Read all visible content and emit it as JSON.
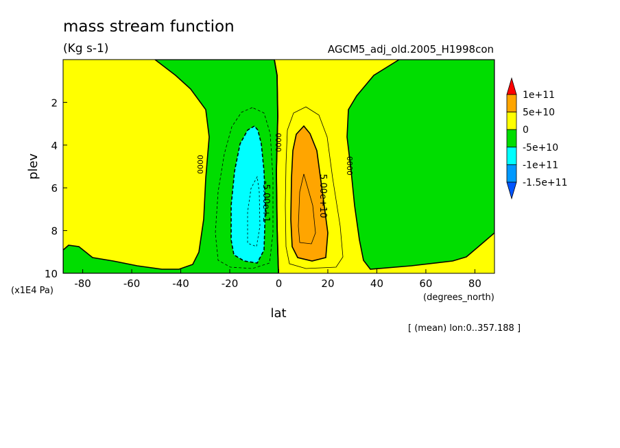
{
  "chart_data": {
    "type": "contour",
    "title": "mass stream function",
    "units": "(Kg s-1)",
    "dataset": "AGCM5_adj_old.2005_H1998con",
    "xlabel": "lat",
    "xunits": "(degrees_north)",
    "ylabel": "plev",
    "yunits": "(x1E4 Pa)",
    "footnote": "[ (mean) lon:0..357.188 ]",
    "xlim": [
      -88,
      88
    ],
    "ylim": [
      10,
      0
    ],
    "x_ticks": [
      -80,
      -60,
      -40,
      -20,
      0,
      20,
      40,
      60,
      80
    ],
    "x_tick_labels": [
      "-80",
      "-60",
      "-40",
      "-20",
      "0",
      "20",
      "40",
      "60",
      "80"
    ],
    "y_ticks": [
      2,
      4,
      6,
      8,
      10
    ],
    "y_tick_labels": [
      "2",
      "4",
      "6",
      "8",
      "10"
    ],
    "colorbar": {
      "labels": [
        "1e+11",
        "5e+10",
        "0",
        "-5e+10",
        "-1e+11",
        "-1.5e+11"
      ],
      "colors": [
        "#ff0000",
        "#ffa500",
        "#ffff00",
        "#00dd00",
        "#00ffff",
        "#0099ff",
        "#0055ff"
      ]
    },
    "contour_labels": [
      {
        "text": "-5.00e+1",
        "lat": -11,
        "plev": 7.0
      },
      {
        "text": "5.00e+10",
        "lat": 20,
        "plev": 7.2
      },
      {
        "text": "0000",
        "lat": -30,
        "plev": 5.1
      },
      {
        "text": "0000",
        "lat": 0,
        "plev": 4.0
      },
      {
        "text": "0000",
        "lat": 30,
        "plev": 5.1
      }
    ],
    "regions": [
      {
        "level": "-5e+10..0",
        "color": "#00dd00",
        "lat_range": [
          -88,
          -3
        ],
        "plev_range": [
          0,
          10
        ]
      },
      {
        "level": "-1e+11..-5e+10",
        "color": "#00ffff",
        "lat_range": [
          -20,
          -4
        ],
        "plev_range": [
          3.2,
          9.5
        ]
      },
      {
        "level": "5e+10..1e+11",
        "color": "#ffa500",
        "lat_range": [
          6,
          20
        ],
        "plev_range": [
          3.1,
          9.3
        ]
      },
      {
        "level": "-5e+10..0",
        "color": "#00dd00",
        "lat_range": [
          29,
          88
        ],
        "plev_range": [
          0,
          9.8
        ]
      }
    ]
  }
}
